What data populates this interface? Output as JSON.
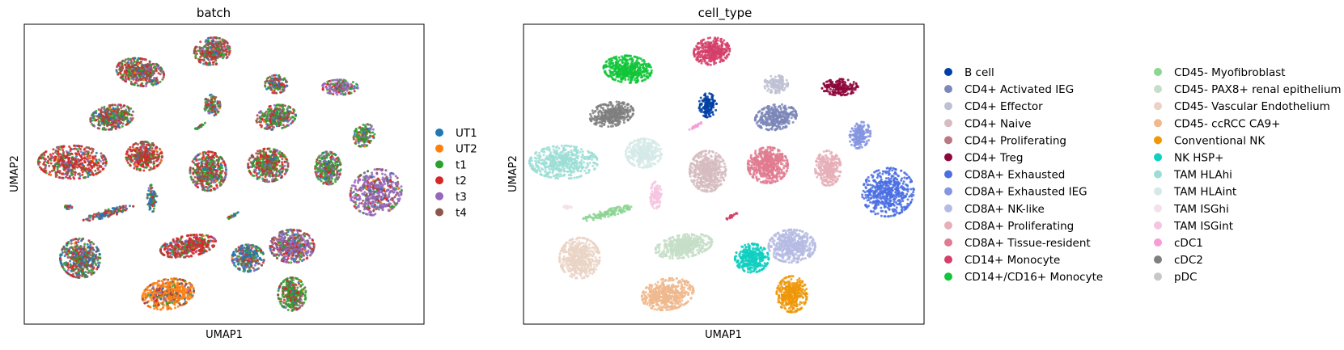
{
  "chart_data": [
    {
      "type": "scatter",
      "title": "batch",
      "xlabel": "UMAP1",
      "ylabel": "UMAP2",
      "grid": false,
      "legend_placement": "right",
      "legend": [
        {
          "label": "UT1",
          "color": "#1f77b4"
        },
        {
          "label": "UT2",
          "color": "#ff7f0e"
        },
        {
          "label": "t1",
          "color": "#2ca02c"
        },
        {
          "label": "t2",
          "color": "#d62728"
        },
        {
          "label": "t3",
          "color": "#9467bd"
        },
        {
          "label": "t4",
          "color": "#8c564b"
        }
      ],
      "clusters": [
        {
          "x": 0.29,
          "y": 0.84,
          "rx": 0.06,
          "ry": 0.045,
          "rot": 10,
          "mix": [
            0.1,
            0.02,
            0.18,
            0.3,
            0.1,
            0.3
          ]
        },
        {
          "x": 0.47,
          "y": 0.91,
          "rx": 0.045,
          "ry": 0.045,
          "rot": -10,
          "mix": [
            0.1,
            0.02,
            0.2,
            0.28,
            0.1,
            0.3
          ]
        },
        {
          "x": 0.22,
          "y": 0.69,
          "rx": 0.055,
          "ry": 0.04,
          "rot": -10,
          "mix": [
            0.12,
            0.02,
            0.3,
            0.22,
            0.08,
            0.26
          ]
        },
        {
          "x": 0.47,
          "y": 0.73,
          "rx": 0.02,
          "ry": 0.035,
          "rot": 0,
          "mix": [
            0.15,
            0.02,
            0.3,
            0.2,
            0.08,
            0.25
          ]
        },
        {
          "x": 0.63,
          "y": 0.8,
          "rx": 0.028,
          "ry": 0.03,
          "rot": 0,
          "mix": [
            0.1,
            0.02,
            0.2,
            0.25,
            0.15,
            0.28
          ]
        },
        {
          "x": 0.79,
          "y": 0.79,
          "rx": 0.045,
          "ry": 0.025,
          "rot": 0,
          "mix": [
            0.05,
            0.02,
            0.3,
            0.15,
            0.4,
            0.08
          ]
        },
        {
          "x": 0.63,
          "y": 0.69,
          "rx": 0.05,
          "ry": 0.04,
          "rot": -10,
          "mix": [
            0.1,
            0.02,
            0.4,
            0.2,
            0.1,
            0.18
          ]
        },
        {
          "x": 0.85,
          "y": 0.63,
          "rx": 0.025,
          "ry": 0.04,
          "rot": 30,
          "mix": [
            0.05,
            0.02,
            0.6,
            0.1,
            0.15,
            0.08
          ]
        },
        {
          "x": 0.12,
          "y": 0.54,
          "rx": 0.085,
          "ry": 0.055,
          "rot": 0,
          "mix": [
            0.05,
            0.02,
            0.1,
            0.55,
            0.08,
            0.2
          ]
        },
        {
          "x": 0.3,
          "y": 0.56,
          "rx": 0.045,
          "ry": 0.048,
          "rot": 0,
          "mix": [
            0.05,
            0.02,
            0.15,
            0.55,
            0.05,
            0.18
          ]
        },
        {
          "x": 0.46,
          "y": 0.51,
          "rx": 0.045,
          "ry": 0.065,
          "rot": 0,
          "mix": [
            0.1,
            0.02,
            0.3,
            0.3,
            0.1,
            0.18
          ]
        },
        {
          "x": 0.61,
          "y": 0.53,
          "rx": 0.05,
          "ry": 0.055,
          "rot": 0,
          "mix": [
            0.1,
            0.02,
            0.3,
            0.3,
            0.08,
            0.2
          ]
        },
        {
          "x": 0.76,
          "y": 0.52,
          "rx": 0.032,
          "ry": 0.055,
          "rot": 0,
          "mix": [
            0.1,
            0.02,
            0.45,
            0.15,
            0.15,
            0.13
          ]
        },
        {
          "x": 0.88,
          "y": 0.44,
          "rx": 0.065,
          "ry": 0.075,
          "rot": -20,
          "mix": [
            0.05,
            0.02,
            0.08,
            0.1,
            0.6,
            0.15
          ]
        },
        {
          "x": 0.32,
          "y": 0.42,
          "rx": 0.012,
          "ry": 0.045,
          "rot": 0,
          "mix": [
            0.5,
            0.02,
            0.1,
            0.1,
            0.1,
            0.18
          ]
        },
        {
          "x": 0.21,
          "y": 0.37,
          "rx": 0.065,
          "ry": 0.012,
          "rot": -15,
          "mix": [
            0.4,
            0.05,
            0.1,
            0.2,
            0.05,
            0.2
          ]
        },
        {
          "x": 0.41,
          "y": 0.26,
          "rx": 0.07,
          "ry": 0.035,
          "rot": -10,
          "mix": [
            0.05,
            0.02,
            0.1,
            0.65,
            0.05,
            0.13
          ]
        },
        {
          "x": 0.56,
          "y": 0.22,
          "rx": 0.04,
          "ry": 0.045,
          "rot": 0,
          "mix": [
            0.4,
            0.02,
            0.15,
            0.15,
            0.1,
            0.18
          ]
        },
        {
          "x": 0.67,
          "y": 0.26,
          "rx": 0.055,
          "ry": 0.055,
          "rot": 0,
          "mix": [
            0.1,
            0.02,
            0.1,
            0.15,
            0.4,
            0.23
          ]
        },
        {
          "x": 0.14,
          "y": 0.22,
          "rx": 0.05,
          "ry": 0.065,
          "rot": 20,
          "mix": [
            0.25,
            0.02,
            0.2,
            0.2,
            0.08,
            0.25
          ]
        },
        {
          "x": 0.36,
          "y": 0.1,
          "rx": 0.065,
          "ry": 0.05,
          "rot": -10,
          "mix": [
            0.05,
            0.65,
            0.05,
            0.05,
            0.05,
            0.15
          ]
        },
        {
          "x": 0.67,
          "y": 0.1,
          "rx": 0.035,
          "ry": 0.055,
          "rot": 0,
          "mix": [
            0.05,
            0.02,
            0.5,
            0.15,
            0.05,
            0.23
          ]
        },
        {
          "x": 0.44,
          "y": 0.66,
          "rx": 0.02,
          "ry": 0.004,
          "rot": -30,
          "mix": [
            0.1,
            0.02,
            0.6,
            0.1,
            0.08,
            0.1
          ]
        },
        {
          "x": 0.52,
          "y": 0.36,
          "rx": 0.018,
          "ry": 0.004,
          "rot": -30,
          "mix": [
            0.1,
            0.02,
            0.6,
            0.1,
            0.08,
            0.1
          ]
        },
        {
          "x": 0.11,
          "y": 0.39,
          "rx": 0.01,
          "ry": 0.006,
          "rot": 0,
          "mix": [
            0.3,
            0.02,
            0.2,
            0.2,
            0.08,
            0.2
          ]
        }
      ]
    },
    {
      "type": "scatter",
      "title": "cell_type",
      "xlabel": "UMAP1",
      "ylabel": "UMAP2",
      "grid": false,
      "legend_placement": "right",
      "legend": [
        {
          "label": "B cell",
          "color": "#023fa5"
        },
        {
          "label": "CD4+ Activated IEG",
          "color": "#7d87b9"
        },
        {
          "label": "CD4+ Effector",
          "color": "#bec1d4"
        },
        {
          "label": "CD4+ Naive",
          "color": "#d6bcc0"
        },
        {
          "label": "CD4+ Proliferating",
          "color": "#bb7784"
        },
        {
          "label": "CD4+ Treg",
          "color": "#8e063b"
        },
        {
          "label": "CD8A+ Exhausted",
          "color": "#4a6fe3"
        },
        {
          "label": "CD8A+ Exhausted IEG",
          "color": "#8595e1"
        },
        {
          "label": "CD8A+ NK-like",
          "color": "#b5bbe3"
        },
        {
          "label": "CD8A+ Proliferating",
          "color": "#e6afb9"
        },
        {
          "label": "CD8A+ Tissue-resident",
          "color": "#e07b91"
        },
        {
          "label": "CD14+ Monocyte",
          "color": "#d33f6a"
        },
        {
          "label": "CD14+/CD16+ Monocyte",
          "color": "#11c638"
        },
        {
          "label": "CD45- Myofibroblast",
          "color": "#8dd593"
        },
        {
          "label": "CD45- PAX8+ renal epithelium",
          "color": "#c6dec7"
        },
        {
          "label": "CD45- Vascular Endothelium",
          "color": "#ead3c6"
        },
        {
          "label": "CD45- ccRCC CA9+",
          "color": "#f0b98d"
        },
        {
          "label": "Conventional NK",
          "color": "#ef9708"
        },
        {
          "label": "NK HSP+",
          "color": "#0fcfc0"
        },
        {
          "label": "TAM HLAhi",
          "color": "#9cded6"
        },
        {
          "label": "TAM HLAint",
          "color": "#d5eae7"
        },
        {
          "label": "TAM ISGhi",
          "color": "#f3e1eb"
        },
        {
          "label": "TAM ISGint",
          "color": "#f6c4e1"
        },
        {
          "label": "cDC1",
          "color": "#f79cd4"
        },
        {
          "label": "cDC2",
          "color": "#7f7f7f"
        },
        {
          "label": "pDC",
          "color": "#c7c7c7"
        }
      ],
      "clusters": [
        {
          "x": 0.26,
          "y": 0.85,
          "rx": 0.06,
          "ry": 0.045,
          "rot": 5,
          "cat": 12
        },
        {
          "x": 0.47,
          "y": 0.91,
          "rx": 0.045,
          "ry": 0.045,
          "rot": -10,
          "cat": 11
        },
        {
          "x": 0.22,
          "y": 0.7,
          "rx": 0.055,
          "ry": 0.04,
          "rot": -10,
          "cat": 24
        },
        {
          "x": 0.46,
          "y": 0.73,
          "rx": 0.022,
          "ry": 0.04,
          "rot": 0,
          "cat": 0
        },
        {
          "x": 0.63,
          "y": 0.8,
          "rx": 0.03,
          "ry": 0.03,
          "rot": 0,
          "cat": 2
        },
        {
          "x": 0.79,
          "y": 0.79,
          "rx": 0.045,
          "ry": 0.027,
          "rot": 0,
          "cat": 5
        },
        {
          "x": 0.63,
          "y": 0.69,
          "rx": 0.052,
          "ry": 0.042,
          "rot": -10,
          "cat": 1
        },
        {
          "x": 0.84,
          "y": 0.63,
          "rx": 0.025,
          "ry": 0.045,
          "rot": 20,
          "cat": 7
        },
        {
          "x": 0.1,
          "y": 0.54,
          "rx": 0.085,
          "ry": 0.055,
          "rot": 0,
          "cat": 19
        },
        {
          "x": 0.3,
          "y": 0.57,
          "rx": 0.045,
          "ry": 0.048,
          "rot": 0,
          "cat": 20
        },
        {
          "x": 0.46,
          "y": 0.51,
          "rx": 0.045,
          "ry": 0.068,
          "rot": 0,
          "cat": 3
        },
        {
          "x": 0.61,
          "y": 0.53,
          "rx": 0.05,
          "ry": 0.06,
          "rot": 0,
          "cat": 10
        },
        {
          "x": 0.76,
          "y": 0.52,
          "rx": 0.032,
          "ry": 0.058,
          "rot": 0,
          "cat": 9
        },
        {
          "x": 0.91,
          "y": 0.44,
          "rx": 0.065,
          "ry": 0.08,
          "rot": -20,
          "cat": 6
        },
        {
          "x": 0.33,
          "y": 0.43,
          "rx": 0.014,
          "ry": 0.045,
          "rot": 0,
          "cat": 22
        },
        {
          "x": 0.21,
          "y": 0.37,
          "rx": 0.065,
          "ry": 0.012,
          "rot": -15,
          "cat": 13
        },
        {
          "x": 0.4,
          "y": 0.26,
          "rx": 0.072,
          "ry": 0.038,
          "rot": -10,
          "cat": 14
        },
        {
          "x": 0.57,
          "y": 0.22,
          "rx": 0.042,
          "ry": 0.048,
          "rot": 0,
          "cat": 18
        },
        {
          "x": 0.67,
          "y": 0.26,
          "rx": 0.058,
          "ry": 0.055,
          "rot": 0,
          "cat": 8
        },
        {
          "x": 0.14,
          "y": 0.22,
          "rx": 0.05,
          "ry": 0.068,
          "rot": 20,
          "cat": 15
        },
        {
          "x": 0.36,
          "y": 0.1,
          "rx": 0.065,
          "ry": 0.052,
          "rot": -10,
          "cat": 16
        },
        {
          "x": 0.67,
          "y": 0.1,
          "rx": 0.038,
          "ry": 0.06,
          "rot": 0,
          "cat": 17
        },
        {
          "x": 0.43,
          "y": 0.66,
          "rx": 0.018,
          "ry": 0.004,
          "rot": -30,
          "cat": 23
        },
        {
          "x": 0.52,
          "y": 0.36,
          "rx": 0.016,
          "ry": 0.004,
          "rot": -30,
          "cat": 11
        },
        {
          "x": 0.11,
          "y": 0.39,
          "rx": 0.01,
          "ry": 0.006,
          "rot": 0,
          "cat": 21
        }
      ]
    }
  ]
}
